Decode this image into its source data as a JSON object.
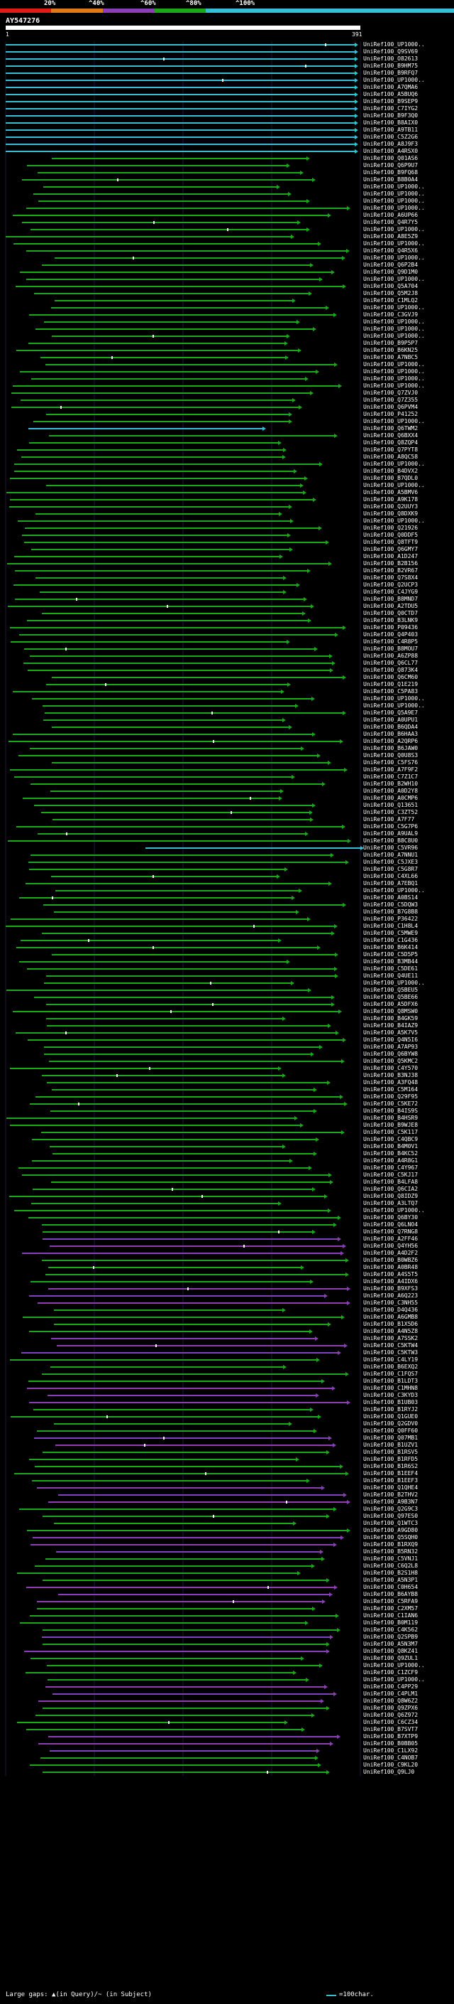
{
  "scale": {
    "ticks": [
      "20%",
      "^40%",
      "^60%",
      "^80%",
      "^100%"
    ],
    "colors": [
      "#e01b1b",
      "#e07a18",
      "#8b3fb5",
      "#1aa81a",
      "#35bfd4"
    ]
  },
  "query": {
    "name": "AY547276",
    "start": "1",
    "end": "391"
  },
  "hits": [
    "UniRef100_UP1000..",
    "UniRef100_Q9SV69",
    "UniRef100_O82613",
    "UniRef100_B9HM75",
    "UniRef100_B9RFQ7",
    "UniRef100_UP1000..",
    "UniRef100_A7QMA6",
    "UniRef100_A5BUQ6",
    "UniRef100_B9SEP9",
    "UniRef100_C7IYG2",
    "UniRef100_B9F3Q0",
    "UniRef100_B8AIX0",
    "UniRef100_A9TB11",
    "UniRef100_C5Z2G6",
    "UniRef100_A8J9F3",
    "UniRef100_A4RSX0",
    "UniRef100_Q01AS6",
    "UniRef100_Q6P9U7",
    "UniRef100_B9FQ68",
    "UniRef100_B8B0A4",
    "UniRef100_UP1000..",
    "UniRef100_UP1000..",
    "UniRef100_UP1000..",
    "UniRef100_UP1000..",
    "UniRef100_A6UP66",
    "UniRef100_Q4R7Y5",
    "UniRef100_UP1000..",
    "UniRef100_A8E5Z9",
    "UniRef100_UP1000..",
    "UniRef100_Q4R5X6",
    "UniRef100_UP1000..",
    "UniRef100_Q6P2B4",
    "UniRef100_Q9D1M0",
    "UniRef100_UP1000..",
    "UniRef100_Q5A704",
    "UniRef100_Q5M2J8",
    "UniRef100_C1MLQ2",
    "UniRef100_UP1000..",
    "UniRef100_C3GVJ9",
    "UniRef100_UP1000..",
    "UniRef100_UP1000..",
    "UniRef100_UP1000..",
    "UniRef100_B9P5P7",
    "UniRef100_B6KN25",
    "UniRef100_A7NBC5",
    "UniRef100_UP1000..",
    "UniRef100_UP1000..",
    "UniRef100_UP1000..",
    "UniRef100_UP1000..",
    "UniRef100_Q7ZVJ0",
    "UniRef100_Q7Z355",
    "UniRef100_Q6PVM4",
    "UniRef100_P41252",
    "UniRef100_UP1000..",
    "UniRef100_Q6TWM2",
    "UniRef100_Q6BXX4",
    "UniRef100_Q8ZQP4",
    "UniRef100_Q7PYT8",
    "UniRef100_A8QC58",
    "UniRef100_UP1000..",
    "UniRef100_B4DVX2",
    "UniRef100_B7QDL0",
    "UniRef100_UP1000..",
    "UniRef100_A5BMV6",
    "UniRef100_A9K178",
    "UniRef100_Q2UUY3",
    "UniRef100_Q8DXK9",
    "UniRef100_UP1000..",
    "UniRef100_Q21926",
    "UniRef100_Q0DDF5",
    "UniRef100_Q8TFT9",
    "UniRef100_Q6GMY7",
    "UniRef100_A1D247",
    "UniRef100_B2B156",
    "UniRef100_B2VR67",
    "UniRef100_Q7S8X4",
    "UniRef100_Q2UCP3",
    "UniRef100_C4JYG9",
    "UniRef100_B8MND7",
    "UniRef100_A2TDU5",
    "UniRef100_Q0CTD7",
    "UniRef100_B3LNK9",
    "UniRef100_P09436",
    "UniRef100_Q4P403",
    "UniRef100_C4R8P5",
    "UniRef100_B8MOU7",
    "UniRef100_A6ZP88",
    "UniRef100_Q6CL77",
    "UniRef100_Q873K4",
    "UniRef100_Q6CM60",
    "UniRef100_Q1E219",
    "UniRef100_C5PA83",
    "UniRef100_UP1000..",
    "UniRef100_UP1000..",
    "UniRef100_Q5A9E7",
    "UniRef100_A0UPU1",
    "UniRef100_B6QDA4",
    "UniRef100_B6HAA3",
    "UniRef100_A2QRP6",
    "UniRef100_B6JAW0",
    "UniRef100_Q0U8S3",
    "UniRef100_C5FS76",
    "UniRef100_A7F9F2",
    "UniRef100_C7Z1C7",
    "UniRef100_B2WH10",
    "UniRef100_A0D2Y8",
    "UniRef100_A0CMP6",
    "UniRef100_Q13651",
    "UniRef100_C3ZT52",
    "UniRef100_A7F77",
    "UniRef100_C5G7P6",
    "UniRef100_A9UAL9",
    "UniRef100_B8C8U0",
    "UniRef100_C5VR96",
    "UniRef100_A7NNU1",
    "UniRef100_C5JXE3",
    "UniRef100_C5G8R7",
    "UniRef100_C4XL66",
    "UniRef100_A7EBQ1",
    "UniRef100_UP1000..",
    "UniRef100_A0BS14",
    "UniRef100_C5DQW3",
    "UniRef100_B7G8B8",
    "UniRef100_P36422",
    "UniRef100_C1H8L4",
    "UniRef100_C5MWE9",
    "UniRef100_C1G436",
    "UniRef100_B6K414",
    "UniRef100_C5D5P5",
    "UniRef100_B3MB44",
    "UniRef100_C5DE61",
    "UniRef100_Q4UE11",
    "UniRef100_UP1000..",
    "UniRef100_Q5BEU5",
    "UniRef100_Q5BE66",
    "UniRef100_A5DFX6",
    "UniRef100_Q8MSW0",
    "UniRef100_B4GK59",
    "UniRef100_B4IAZ9",
    "UniRef100_A5K7V5",
    "UniRef100_Q4N5I6",
    "UniRef100_A7AP93",
    "UniRef100_Q6BYW8",
    "UniRef100_Q5KMC2",
    "UniRef100_C4Y570",
    "UniRef100_B3NJ38",
    "UniRef100_A3FQ48",
    "UniRef100_C5M164",
    "UniRef100_Q29F95",
    "UniRef100_C5KE72",
    "UniRef100_B4IS9S",
    "UniRef100_B4HSR9",
    "UniRef100_B9WJE8",
    "UniRef100_C5K117",
    "UniRef100_C4QBC9",
    "UniRef100_B4M0V1",
    "UniRef100_B4KC52",
    "UniRef100_A4R8G1",
    "UniRef100_C4Y967",
    "UniRef100_C5KJ17",
    "UniRef100_B4LFA8",
    "UniRef100_Q6CIA2",
    "UniRef100_Q8IDZ9",
    "UniRef100_A3LTQ7",
    "UniRef100_UP1000..",
    "UniRef100_Q6BY30",
    "UniRef100_Q6LNO4",
    "UniRef100_Q7RNG8",
    "UniRef100_A2FF46",
    "UniRef100_Q4YH56",
    "UniRef100_A4D2F2",
    "UniRef100_B0WBZ6",
    "UniRef100_A0BR48",
    "UniRef100_A4S5T5",
    "UniRef100_A4IDX6",
    "UniRef100_B9XFS3",
    "UniRef100_A6Q223",
    "UniRef100_C3NH55",
    "UniRef100_D4Q436",
    "UniRef100_A6GMB8",
    "UniRef100_B1X5D6",
    "UniRef100_A4N5Z8",
    "UniRef100_A7SSK2",
    "UniRef100_C5KTW4",
    "UniRef100_C5KTW3",
    "UniRef100_C4LY19",
    "UniRef100_B6EXQ2",
    "UniRef100_C1FQS7",
    "UniRef100_B1LDT3",
    "UniRef100_C1MHN8",
    "UniRef100_C3KYD3",
    "UniRef100_B1UB03",
    "UniRef100_B1RYJ2",
    "UniRef100_Q1GUE0",
    "UniRef100_Q2GDV0",
    "UniRef100_Q0FF60",
    "UniRef100_Q07MB1",
    "UniRef100_B1UZV1",
    "UniRef100_B1RSV5",
    "UniRef100_B1RFD5",
    "UniRef100_B1R6S2",
    "UniRef100_B1EEF4",
    "UniRef100_B1EEF3",
    "UniRef100_Q1QHE4",
    "UniRef100_B2THV2",
    "UniRef100_A9B3N7",
    "UniRef100_Q2G9C3",
    "UniRef100_Q97ES0",
    "UniRef100_Q1WTC3",
    "UniRef100_A9GD80",
    "UniRef100_Q5SQH0",
    "UniRef100_B1RXQ9",
    "UniRef100_B5RN32",
    "UniRef100_C5VNJ1",
    "UniRef100_C6Q2L8",
    "UniRef100_B2S1H8",
    "UniRef100_A5N3P1",
    "UniRef100_C0H654",
    "UniRef100_B6AYB8",
    "UniRef100_C5RFA9",
    "UniRef100_C2XM57",
    "UniRef100_C1IAN6",
    "UniRef100_B0M119",
    "UniRef100_C4K562",
    "UniRef100_Q2SPB9",
    "UniRef100_A5N3M7",
    "UniRef100_Q8KZ41",
    "UniRef100_Q9ZUL1",
    "UniRef100_UP1000..",
    "UniRef100_C1ZCF9",
    "UniRef100_UP1000..",
    "UniRef100_C4PP29",
    "UniRef100_C4PLM1",
    "UniRef100_Q8W6Z2",
    "UniRef100_Q9ZPX6",
    "UniRef100_Q6Z972",
    "UniRef100_C6CZ34",
    "UniRef100_B7SVT7",
    "UniRef100_B7XTP9",
    "UniRef100_B0BB05",
    "UniRef100_C1LX92",
    "UniRef100_C4NOB7",
    "UniRef100_C9KL20",
    "UniRef100_Q9LJ0"
  ],
  "legend": {
    "text": "Large gaps: ▲(in Query)/~ (in Subject)",
    "scale": "=100char."
  }
}
